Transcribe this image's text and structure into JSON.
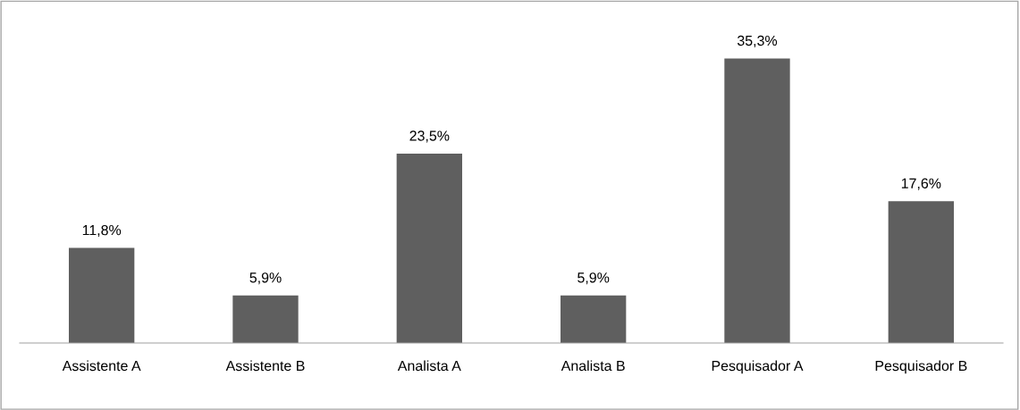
{
  "chart_data": {
    "type": "bar",
    "categories": [
      "Assistente A",
      "Assistente B",
      "Analista A",
      "Analista B",
      "Pesquisador A",
      "Pesquisador B"
    ],
    "values": [
      11.8,
      5.9,
      23.5,
      5.9,
      35.3,
      17.6
    ],
    "value_labels": [
      "11,8%",
      "5,9%",
      "23,5%",
      "5,9%",
      "35,3%",
      "17,6%"
    ],
    "color": "#5f5f5f",
    "tick_labels": "x",
    "grid": false,
    "legend": false
  }
}
